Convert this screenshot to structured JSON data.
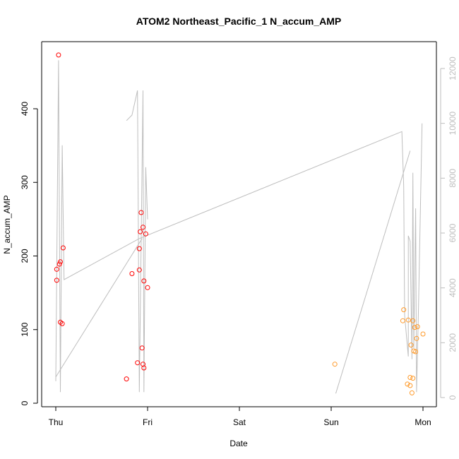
{
  "chart_data": {
    "type": "scatter",
    "title": "ATOM2 Northeast_Pacific_1 N_accum_AMP",
    "xlabel": "Date",
    "ylabel": "N_accum_AMP",
    "x_ticks": [
      "Thu",
      "Fri",
      "Sat",
      "Sun",
      "Mon"
    ],
    "y_ticks": [
      "0",
      "100",
      "200",
      "300",
      "400"
    ],
    "y2_ticks": [
      "0",
      "2000",
      "4000",
      "6000",
      "8000",
      "10000",
      "12000"
    ],
    "xlim": [
      -0.05,
      4.05
    ],
    "ylim": [
      0,
      478
    ],
    "y2lim": [
      0,
      12420
    ],
    "grid": false,
    "legend": "none",
    "colors": {
      "series_a": "#ff0000",
      "series_b": "#ff9a2a",
      "line": "#bebebe",
      "axis": "#000000",
      "right_axis": "#bebebe"
    },
    "series": [
      {
        "color": "#ff0000",
        "points": [
          {
            "x": 0.01,
            "y": 182
          },
          {
            "x": 0.01,
            "y": 167
          },
          {
            "x": 0.03,
            "y": 473
          },
          {
            "x": 0.04,
            "y": 189
          },
          {
            "x": 0.05,
            "y": 192
          },
          {
            "x": 0.05,
            "y": 110
          },
          {
            "x": 0.07,
            "y": 108
          },
          {
            "x": 0.08,
            "y": 211
          },
          {
            "x": 0.77,
            "y": 33
          },
          {
            "x": 0.83,
            "y": 176
          },
          {
            "x": 0.89,
            "y": 55
          },
          {
            "x": 0.91,
            "y": 181
          },
          {
            "x": 0.91,
            "y": 210
          },
          {
            "x": 0.92,
            "y": 233
          },
          {
            "x": 0.93,
            "y": 259
          },
          {
            "x": 0.94,
            "y": 75
          },
          {
            "x": 0.95,
            "y": 53
          },
          {
            "x": 0.95,
            "y": 239
          },
          {
            "x": 0.96,
            "y": 48
          },
          {
            "x": 0.96,
            "y": 166
          },
          {
            "x": 0.98,
            "y": 230
          },
          {
            "x": 1.0,
            "y": 157
          }
        ]
      },
      {
        "color": "#ff9a2a",
        "points": [
          {
            "x": 3.04,
            "y": 53
          },
          {
            "x": 3.78,
            "y": 112
          },
          {
            "x": 3.79,
            "y": 127
          },
          {
            "x": 3.83,
            "y": 26
          },
          {
            "x": 3.84,
            "y": 113
          },
          {
            "x": 3.86,
            "y": 35
          },
          {
            "x": 3.86,
            "y": 24
          },
          {
            "x": 3.87,
            "y": 79
          },
          {
            "x": 3.88,
            "y": 14
          },
          {
            "x": 3.89,
            "y": 34
          },
          {
            "x": 3.89,
            "y": 112
          },
          {
            "x": 3.9,
            "y": 71
          },
          {
            "x": 3.91,
            "y": 103
          },
          {
            "x": 3.92,
            "y": 70
          },
          {
            "x": 3.93,
            "y": 88
          },
          {
            "x": 3.94,
            "y": 104
          },
          {
            "x": 4.0,
            "y": 94
          }
        ]
      }
    ],
    "line_series": [
      {
        "axis": "right",
        "color": "#bebebe",
        "points": [
          {
            "x": 0.0,
            "y": 600
          },
          {
            "x": 0.03,
            "y": 12300
          },
          {
            "x": 0.05,
            "y": 200
          },
          {
            "x": 0.07,
            "y": 9200
          },
          {
            "x": 0.09,
            "y": 4300
          },
          {
            "x": 0.91,
            "y": 5800
          },
          {
            "x": 3.77,
            "y": 9700
          },
          {
            "x": 3.79,
            "y": 7700
          },
          {
            "x": 3.8,
            "y": 3000
          },
          {
            "x": 3.84,
            "y": 1500
          },
          {
            "x": 3.84,
            "y": 5900
          },
          {
            "x": 3.86,
            "y": 5700
          },
          {
            "x": 3.88,
            "y": 1400
          },
          {
            "x": 3.89,
            "y": 8200
          },
          {
            "x": 3.9,
            "y": 1800
          },
          {
            "x": 3.92,
            "y": 6900
          },
          {
            "x": 3.93,
            "y": 200
          },
          {
            "x": 3.95,
            "y": 3100
          },
          {
            "x": 3.99,
            "y": 10000
          }
        ]
      },
      {
        "axis": "right",
        "color": "#bebebe",
        "points": [
          {
            "x": 0.77,
            "y": 10100
          },
          {
            "x": 0.83,
            "y": 10300
          },
          {
            "x": 0.89,
            "y": 11200
          },
          {
            "x": 0.91,
            "y": 200
          },
          {
            "x": 0.95,
            "y": 11200
          },
          {
            "x": 0.96,
            "y": 200
          },
          {
            "x": 0.98,
            "y": 8400
          },
          {
            "x": 1.0,
            "y": 6500
          }
        ]
      },
      {
        "axis": "right",
        "color": "#bebebe",
        "points": [
          {
            "x": 0.0,
            "y": 750
          },
          {
            "x": 0.94,
            "y": 5800
          }
        ]
      },
      {
        "axis": "right",
        "color": "#bebebe",
        "points": [
          {
            "x": 3.05,
            "y": 150
          },
          {
            "x": 3.86,
            "y": 9000
          }
        ]
      }
    ]
  }
}
